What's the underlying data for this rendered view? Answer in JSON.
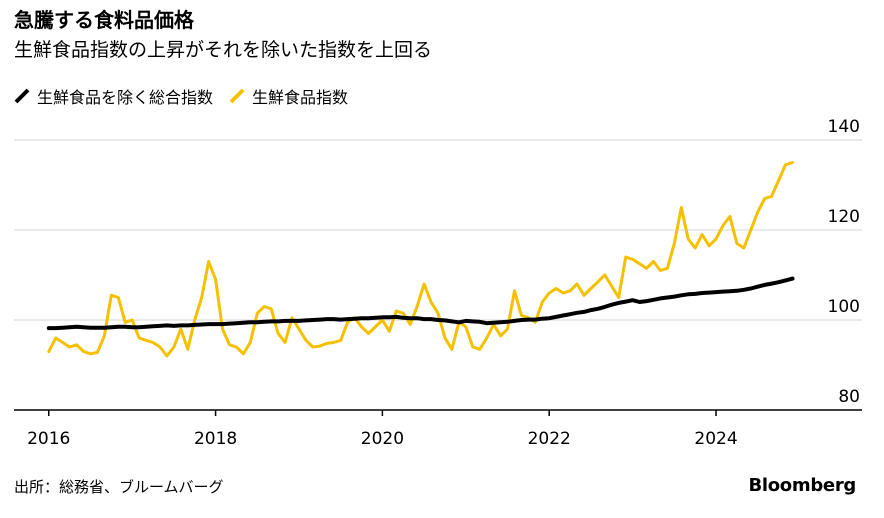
{
  "title": "急騰する食料品価格",
  "subtitle": "生鮮食品指数の上昇がそれを除いた指数を上回る",
  "colors": {
    "core": "#000000",
    "fresh": "#f5c000",
    "grid": "#d6d6d6",
    "axis": "#000000"
  },
  "chart_data": {
    "type": "line",
    "title": "急騰する食料品価格",
    "subtitle": "生鮮食品指数の上昇がそれを除いた指数を上回る",
    "xlabel": "",
    "ylabel": "",
    "x_start": "2016-01",
    "x_end": "2024-12",
    "frequency": "monthly",
    "xlim": [
      "2015-08",
      "2025-10"
    ],
    "ylim": [
      80,
      140
    ],
    "yticks": [
      "140",
      "120",
      "100",
      "80"
    ],
    "xticks": [
      {
        "x": "2016-01",
        "label": "2016"
      },
      {
        "x": "2018-01",
        "label": "2018"
      },
      {
        "x": "2020-01",
        "label": "2020"
      },
      {
        "x": "2022-01",
        "label": "2022"
      },
      {
        "x": "2024-01",
        "label": "2024"
      }
    ],
    "grid": true,
    "legend_position": "top-left",
    "series": [
      {
        "name": "生鮮食品を除く総合指数",
        "color": "#000000",
        "values": [
          98.2,
          98.2,
          98.3,
          98.4,
          98.5,
          98.4,
          98.3,
          98.3,
          98.3,
          98.4,
          98.5,
          98.5,
          98.4,
          98.4,
          98.5,
          98.6,
          98.7,
          98.8,
          98.7,
          98.8,
          98.8,
          98.9,
          99.0,
          99.1,
          99.1,
          99.1,
          99.2,
          99.3,
          99.4,
          99.5,
          99.5,
          99.6,
          99.7,
          99.7,
          99.8,
          99.8,
          99.8,
          99.9,
          100.0,
          100.1,
          100.2,
          100.2,
          100.1,
          100.2,
          100.3,
          100.4,
          100.4,
          100.5,
          100.6,
          100.6,
          100.7,
          100.5,
          100.4,
          100.4,
          100.2,
          100.2,
          100.0,
          99.9,
          99.7,
          99.5,
          99.8,
          99.7,
          99.6,
          99.3,
          99.4,
          99.5,
          99.6,
          99.8,
          100.0,
          100.1,
          100.1,
          100.3,
          100.4,
          100.7,
          101.0,
          101.3,
          101.6,
          101.8,
          102.2,
          102.5,
          102.9,
          103.4,
          103.8,
          104.1,
          104.4,
          104.0,
          104.2,
          104.5,
          104.8,
          105.0,
          105.2,
          105.5,
          105.7,
          105.8,
          106.0,
          106.1,
          106.2,
          106.3,
          106.4,
          106.5,
          106.7,
          107.0,
          107.4,
          107.8,
          108.1,
          108.4,
          108.8,
          109.2
        ]
      },
      {
        "name": "生鮮食品指数",
        "color": "#f5c000",
        "values": [
          93.0,
          96.0,
          95.0,
          94.0,
          94.5,
          93.0,
          92.5,
          92.8,
          96.5,
          105.5,
          105.0,
          99.5,
          100.0,
          96.0,
          95.5,
          95.0,
          94.0,
          92.0,
          94.0,
          98.0,
          93.5,
          100.0,
          105.0,
          113.0,
          109.0,
          98.0,
          94.5,
          94.0,
          92.5,
          95.0,
          101.5,
          103.0,
          102.5,
          97.0,
          95.0,
          100.5,
          98.0,
          95.5,
          94.0,
          94.2,
          94.8,
          95.0,
          95.5,
          99.5,
          100.5,
          98.5,
          97.0,
          98.5,
          100.0,
          97.5,
          102.0,
          101.5,
          99.0,
          103.0,
          108.0,
          104.0,
          101.5,
          96.0,
          93.5,
          99.5,
          98.5,
          94.0,
          93.5,
          96.0,
          99.0,
          96.5,
          98.0,
          106.5,
          101.0,
          100.5,
          99.5,
          104.0,
          106.0,
          107.0,
          106.0,
          106.5,
          108.0,
          105.5,
          107.0,
          108.5,
          110.0,
          107.5,
          105.0,
          114.0,
          113.5,
          112.5,
          111.5,
          113.0,
          111.0,
          111.5,
          117.0,
          125.0,
          118.0,
          116.0,
          119.0,
          116.5,
          118.0,
          121.0,
          123.0,
          117.0,
          116.0,
          120.0,
          124.0,
          127.0,
          127.5,
          131.0,
          134.5,
          135.0
        ]
      }
    ]
  },
  "legend": [
    {
      "label": "生鮮食品を除く総合指数",
      "color": "#000000"
    },
    {
      "label": "生鮮食品指数",
      "color": "#f5c000"
    }
  ],
  "source": "出所：総務省、ブルームバーグ",
  "brand": "Bloomberg"
}
